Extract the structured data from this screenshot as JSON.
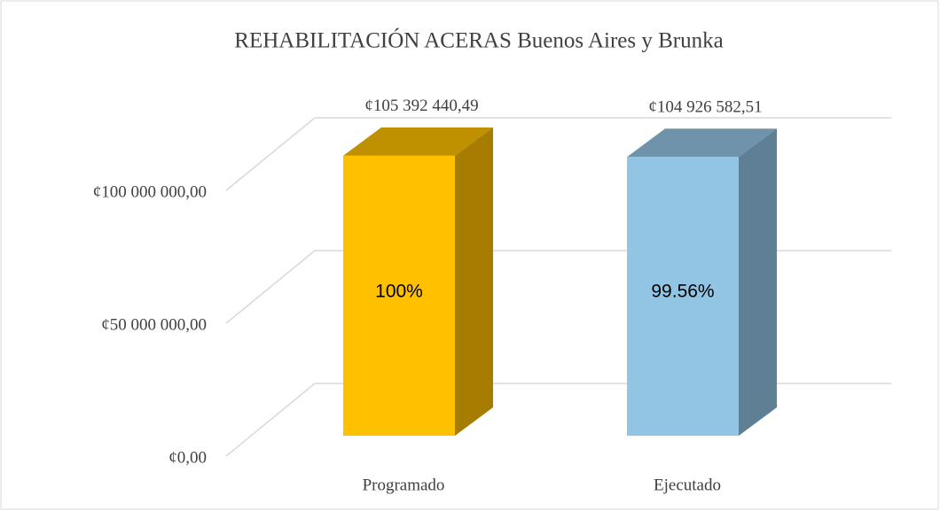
{
  "chart_data": {
    "type": "bar3d",
    "title": "REHABILITACIÓN   ACERAS Buenos Aires y Brunka",
    "categories": [
      "Programado",
      "Ejecutado"
    ],
    "values": [
      105392440.49,
      104926582.51
    ],
    "value_labels": [
      "¢105 392 440,49",
      "¢104 926 582,51"
    ],
    "inner_labels": [
      "100%",
      "99.56%"
    ],
    "colors": [
      "#ffc000",
      "#92c4e3"
    ],
    "ylim": [
      0,
      120000000
    ],
    "yticks": [
      {
        "value": 0,
        "label": "¢0,00"
      },
      {
        "value": 50000000,
        "label": "¢50 000 000,00"
      },
      {
        "value": 100000000,
        "label": "¢100 000 000,00"
      }
    ],
    "grid": true
  }
}
